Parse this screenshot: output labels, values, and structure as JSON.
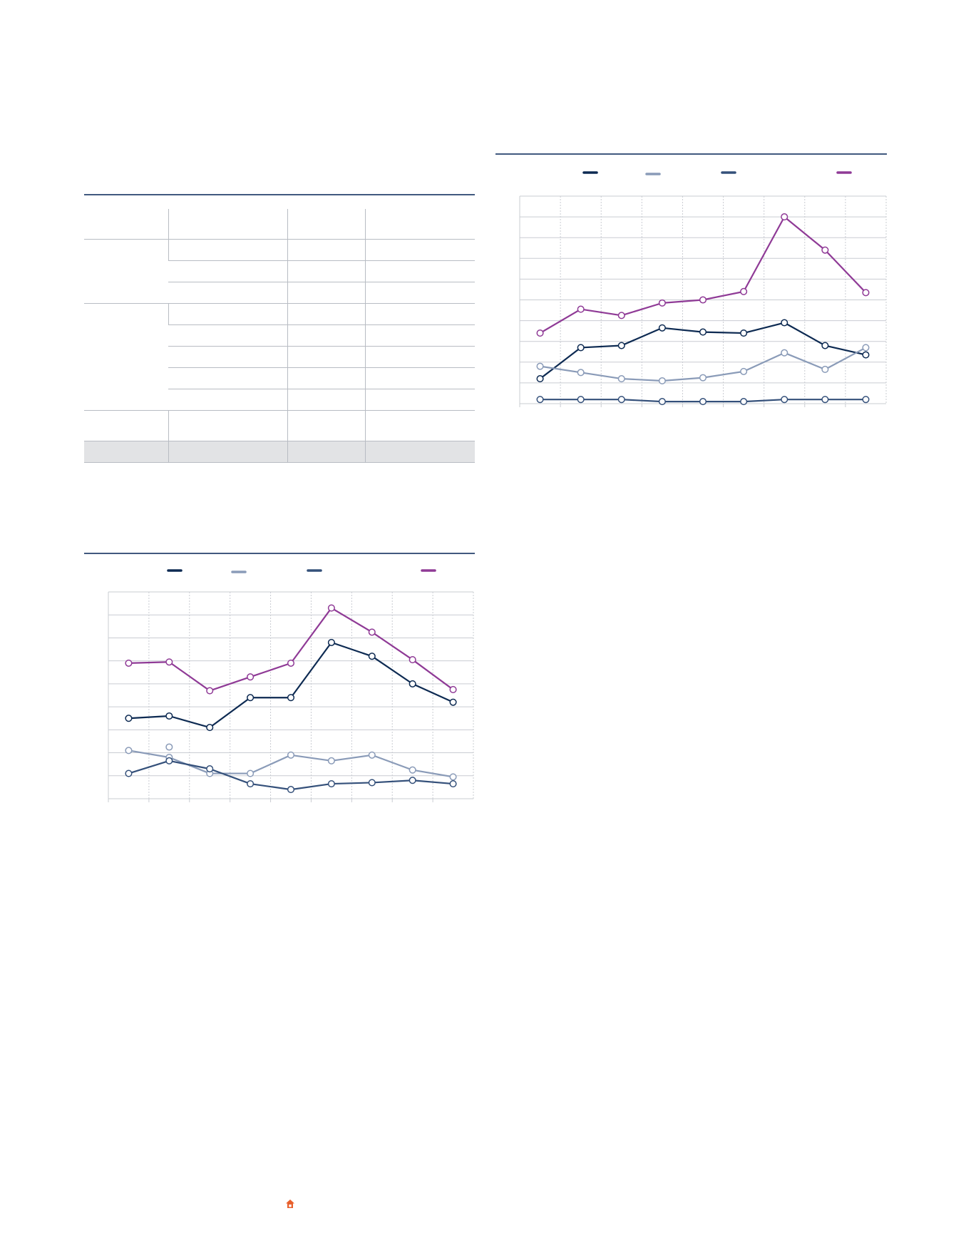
{
  "colors": {
    "rule": "#41597f",
    "grid": "#c9ccd2",
    "navy": "#0d2a52",
    "light_blue": "#8a9bb8",
    "slate_blue": "#34507a",
    "purple": "#8f3a96",
    "home_icon": "#e8602c"
  },
  "icons": {
    "footer": "home-icon"
  },
  "chart_data": [
    {
      "type": "line",
      "series": [
        {
          "values": [
            35,
            36,
            31,
            44,
            44,
            68,
            62,
            50,
            42
          ]
        },
        {
          "values": [
            21,
            18,
            11,
            11,
            19,
            16.5,
            19,
            12.5,
            9.5
          ]
        },
        {
          "values": [
            11,
            16.5,
            13,
            6.5,
            4,
            6.5,
            7,
            8,
            6.5
          ]
        },
        {
          "values": [
            59,
            59.5,
            47,
            53,
            59,
            83,
            72.5,
            60.5,
            47.5
          ]
        }
      ],
      "extra_points": [
        {
          "x_index": 1,
          "value": 22.5
        }
      ],
      "ylim": [
        0,
        90
      ],
      "grid": true
    },
    {
      "type": "line",
      "series": [
        {
          "values": [
            12,
            27,
            28,
            36.5,
            34.5,
            34,
            39,
            28,
            23.5
          ]
        },
        {
          "values": [
            18,
            15,
            12,
            11,
            12.5,
            15.5,
            24.5,
            16.5,
            27
          ]
        },
        {
          "values": [
            2,
            2,
            2,
            1,
            1,
            1,
            2,
            2,
            2
          ]
        },
        {
          "values": [
            34,
            45.5,
            42.5,
            48.5,
            50,
            54,
            90,
            74,
            53.5
          ]
        }
      ],
      "ylim": [
        0,
        100
      ],
      "grid": true
    }
  ]
}
